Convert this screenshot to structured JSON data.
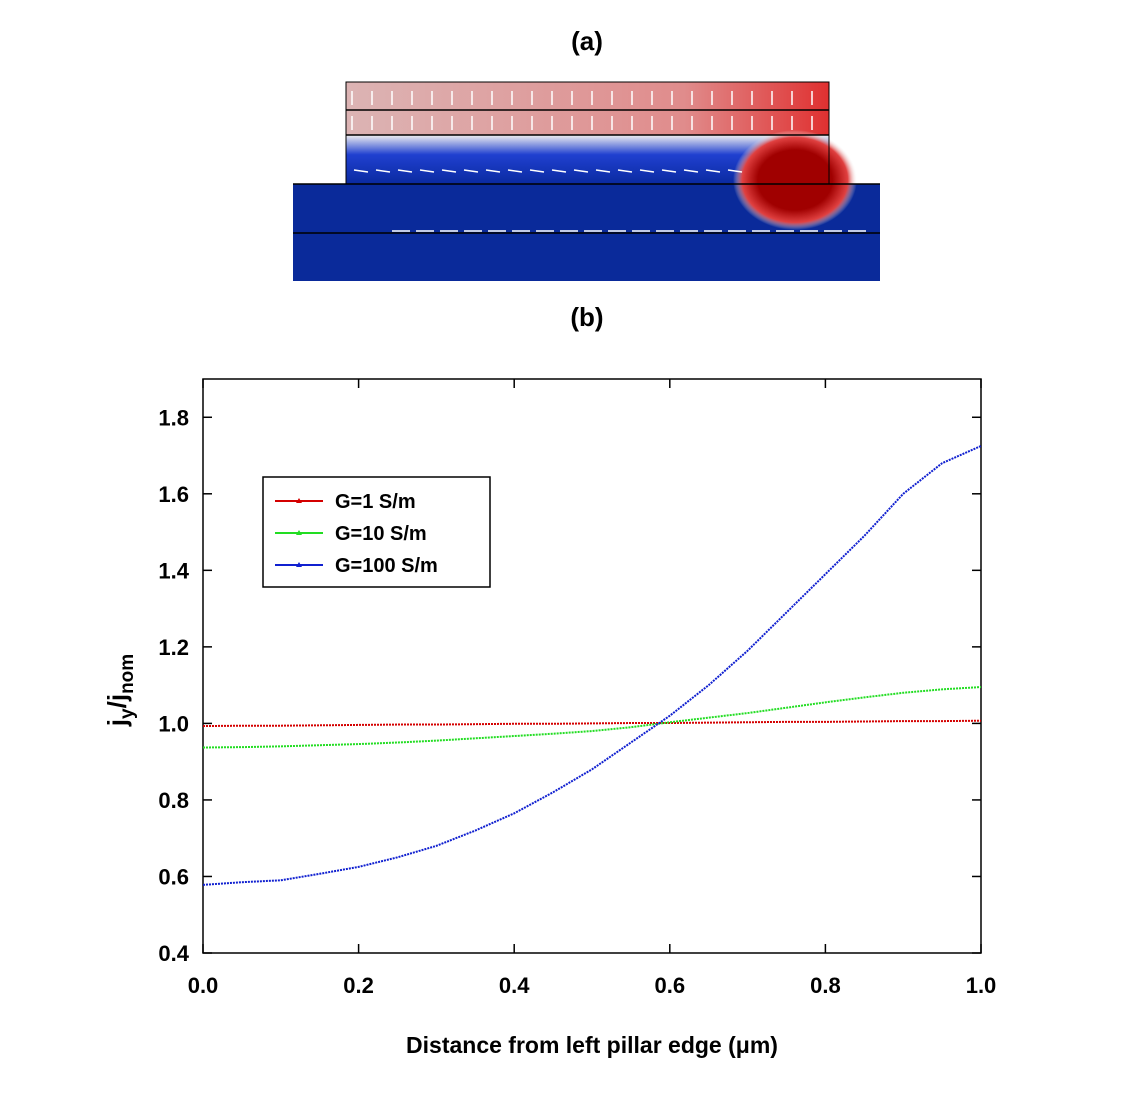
{
  "labels": {
    "a": "(a)",
    "b": "(b)"
  },
  "chart_data": {
    "type": "line",
    "x_label": "Distance from left pillar edge (μm)",
    "y_label": [
      "j",
      "y",
      "/j",
      "nom"
    ],
    "x": [
      0,
      0.05,
      0.1,
      0.15,
      0.2,
      0.25,
      0.3,
      0.35,
      0.4,
      0.45,
      0.5,
      0.55,
      0.6,
      0.65,
      0.7,
      0.75,
      0.8,
      0.85,
      0.9,
      0.95,
      1
    ],
    "series": [
      {
        "name": "G=1 S/m",
        "color": "#d40000",
        "values": [
          0.993,
          0.994,
          0.994,
          0.995,
          0.996,
          0.997,
          0.997,
          0.998,
          0.999,
          0.999,
          1.0,
          1.001,
          1.001,
          1.002,
          1.003,
          1.004,
          1.004,
          1.005,
          1.006,
          1.006,
          1.007
        ]
      },
      {
        "name": "G=10 S/m",
        "color": "#22dd22",
        "values": [
          0.937,
          0.938,
          0.94,
          0.943,
          0.946,
          0.95,
          0.955,
          0.961,
          0.967,
          0.973,
          0.98,
          0.99,
          1.003,
          1.015,
          1.027,
          1.041,
          1.055,
          1.068,
          1.08,
          1.089,
          1.095
        ]
      },
      {
        "name": "G=100 S/m",
        "color": "#1020d0",
        "values": [
          0.578,
          0.585,
          0.59,
          0.607,
          0.625,
          0.65,
          0.68,
          0.72,
          0.765,
          0.82,
          0.88,
          0.95,
          1.02,
          1.1,
          1.19,
          1.29,
          1.39,
          1.49,
          1.6,
          1.68,
          1.725
        ]
      }
    ],
    "xlim": [
      0,
      1
    ],
    "xticks": [
      {
        "value": 0,
        "label": "0.0"
      },
      0.2,
      0.4,
      0.6,
      0.8,
      {
        "value": 1,
        "label": "1.0"
      }
    ],
    "ylim": [
      0.4,
      1.9
    ],
    "yticks": [
      0.4,
      0.6,
      0.8,
      {
        "value": 1,
        "label": "1.0"
      },
      1.2,
      1.4,
      1.6,
      1.8
    ],
    "legend": "upper left"
  }
}
